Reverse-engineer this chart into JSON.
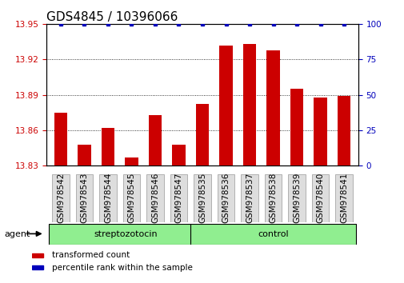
{
  "title": "GDS4845 / 10396066",
  "samples": [
    "GSM978542",
    "GSM978543",
    "GSM978544",
    "GSM978545",
    "GSM978546",
    "GSM978547",
    "GSM978535",
    "GSM978536",
    "GSM978537",
    "GSM978538",
    "GSM978539",
    "GSM978540",
    "GSM978541"
  ],
  "transformed_count": [
    13.875,
    13.848,
    13.862,
    13.837,
    13.873,
    13.848,
    13.882,
    13.932,
    13.933,
    13.928,
    13.895,
    13.888,
    13.889
  ],
  "percentile_rank": [
    100,
    100,
    100,
    100,
    100,
    100,
    100,
    100,
    100,
    100,
    100,
    100,
    100
  ],
  "groups": [
    "streptozotocin",
    "streptozotocin",
    "streptozotocin",
    "streptozotocin",
    "streptozotocin",
    "streptozotocin",
    "control",
    "control",
    "control",
    "control",
    "control",
    "control",
    "control"
  ],
  "group_labels": [
    "streptozotocin",
    "control"
  ],
  "bar_color": "#CC0000",
  "dot_color": "#0000BB",
  "ylim_left": [
    13.83,
    13.95
  ],
  "ylim_right": [
    0,
    100
  ],
  "yticks_left": [
    13.83,
    13.86,
    13.89,
    13.92,
    13.95
  ],
  "yticks_right": [
    0,
    25,
    50,
    75,
    100
  ],
  "background_color": "#ffffff",
  "title_fontsize": 11,
  "tick_fontsize": 7.5,
  "label_fontsize": 8,
  "agent_label": "agent",
  "legend_items": [
    {
      "label": "transformed count",
      "color": "#CC0000"
    },
    {
      "label": "percentile rank within the sample",
      "color": "#0000BB"
    }
  ],
  "strep_count": 6,
  "control_count": 7
}
